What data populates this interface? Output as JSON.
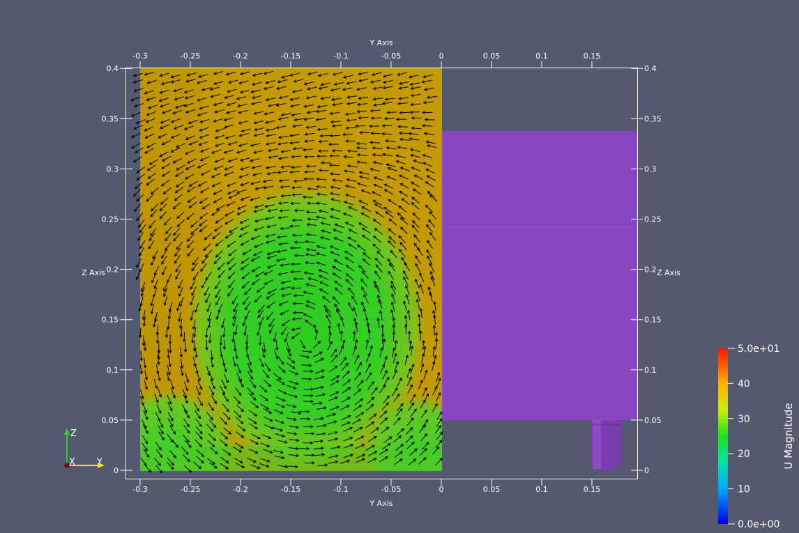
{
  "plot": {
    "x_axis_title": "Y Axis",
    "y_axis_title": "Z Axis",
    "x_ticks": [
      "-0.3",
      "-0.25",
      "-0.2",
      "-0.15",
      "-0.1",
      "-0.05",
      "0",
      "0.05",
      "0.1",
      "0.15"
    ],
    "y_ticks": [
      "0",
      "0.05",
      "0.1",
      "0.15",
      "0.2",
      "0.25",
      "0.3",
      "0.35",
      "0.4"
    ]
  },
  "scalar_bar": {
    "title": "U Magnitude",
    "max_label": "5.0e+01",
    "min_label": "0.0e+00",
    "labels": [
      "40",
      "30",
      "20",
      "10"
    ]
  },
  "orientation": {
    "z": "Z",
    "x": "X",
    "y": "Y"
  },
  "colors": {
    "background": "#535a6d",
    "field_high": "#c49a00",
    "field_low": "#3fce2a",
    "obstacle": "#8a47c2",
    "glyph": "#000000"
  }
}
